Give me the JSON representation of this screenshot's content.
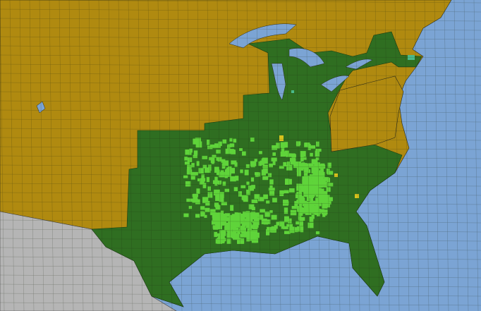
{
  "map": {
    "colors": {
      "ocean": "#7ba4d4",
      "base_region": "#b08a10",
      "highlight_region": "#2f6e21",
      "hotspot_counties": "#5fd43a",
      "minor_counties_yellow": "#d8c21c",
      "minor_counties_teal": "#49b98a",
      "outside_country": "#b5b5b5",
      "borders": "#2a2a1a"
    }
  }
}
